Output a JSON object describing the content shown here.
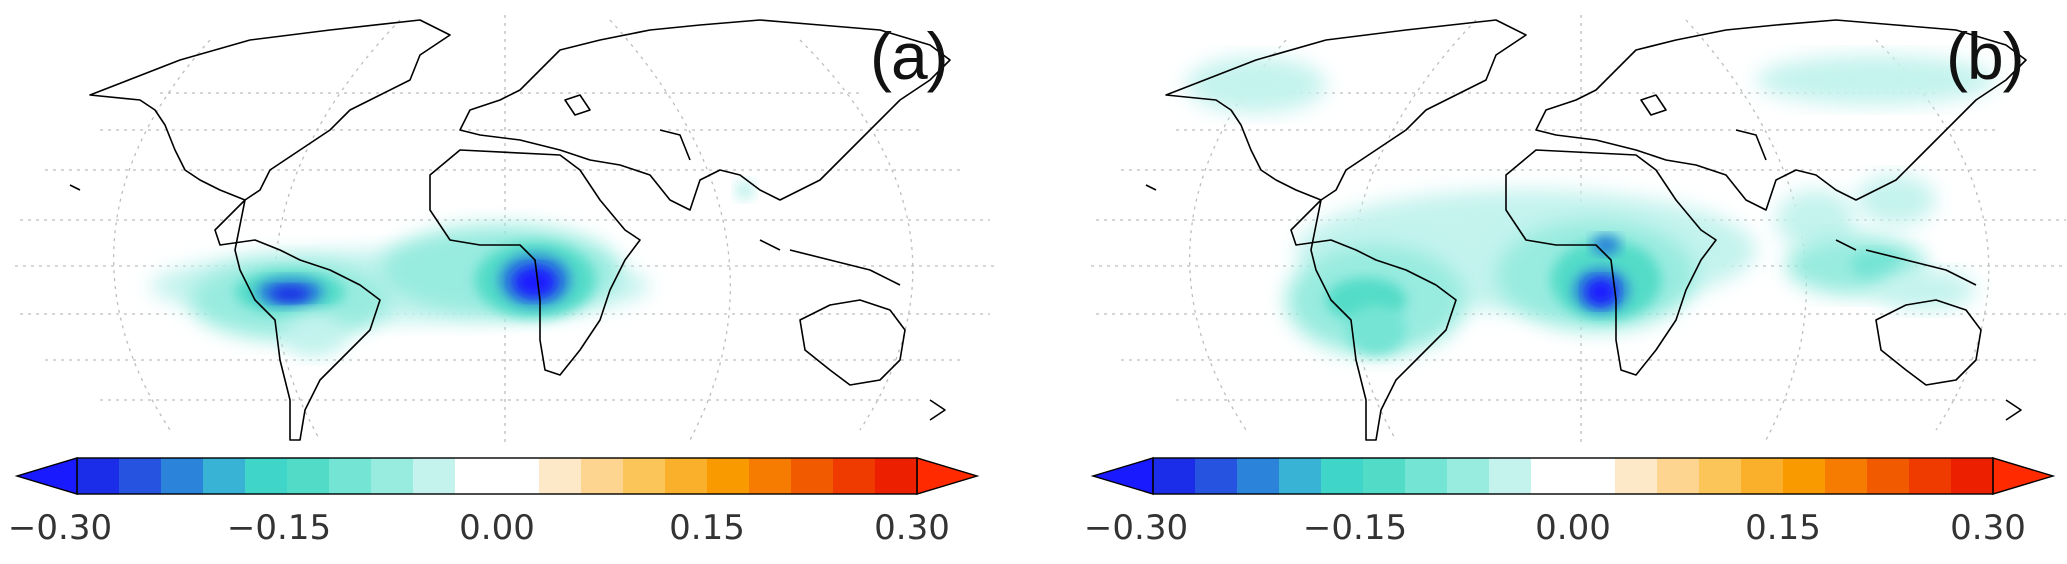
{
  "panels": [
    {
      "id": "a",
      "label": "(a)"
    },
    {
      "id": "b",
      "label": "(b)"
    }
  ],
  "colorbar": {
    "ticks": [
      "−0.30",
      "−0.15",
      "0.00",
      "0.15",
      "0.30"
    ],
    "tick_values": [
      -0.3,
      -0.15,
      0.0,
      0.15,
      0.3
    ],
    "range": [
      -0.3,
      0.3
    ],
    "extend": "both",
    "under_color": "#1a1aff",
    "over_color": "#ff2a00",
    "colors": [
      "#1b2de8",
      "#2653e0",
      "#2b83da",
      "#38b3d6",
      "#3fd6c9",
      "#52dcc8",
      "#74e4d4",
      "#98ebdf",
      "#c4f3ee",
      "#ffffff",
      "#ffffff",
      "#fde8c8",
      "#fdd590",
      "#fcc55a",
      "#fbb02c",
      "#f99a00",
      "#f57c00",
      "#f25a00",
      "#ef3a00",
      "#ec2000"
    ]
  },
  "map": {
    "projection": "robinson",
    "gridlines": true,
    "coastline_color": "#000000"
  }
}
